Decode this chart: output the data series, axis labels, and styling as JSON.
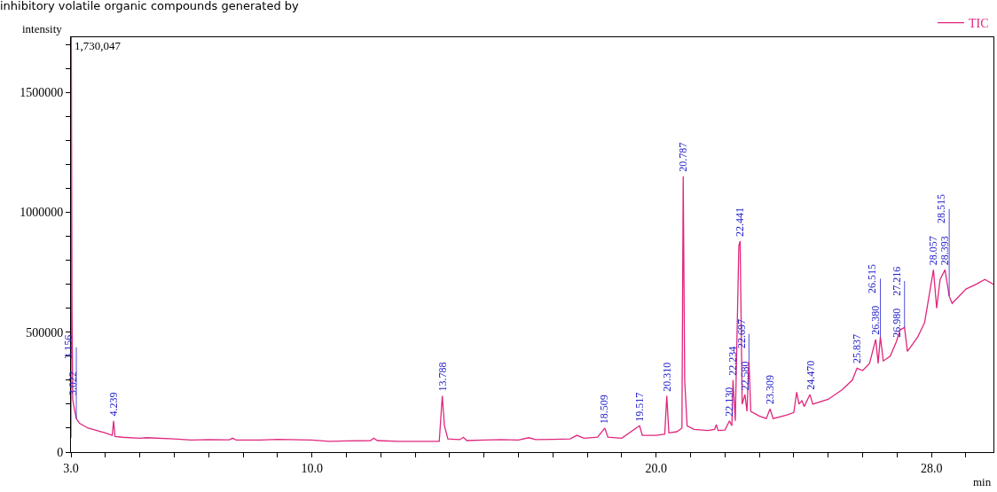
{
  "chart_data": {
    "type": "line",
    "title": "inhibitory volatile organic compounds generated by",
    "xlabel": "min",
    "ylabel": "intensity",
    "xlim": [
      3.0,
      29.8
    ],
    "ylim": [
      0,
      1730047
    ],
    "xticks": [
      {
        "value": 3,
        "label": "3.0"
      },
      {
        "value": 4,
        "label": null
      },
      {
        "value": 5,
        "label": null
      },
      {
        "value": 6,
        "label": null
      },
      {
        "value": 7,
        "label": null
      },
      {
        "value": 8,
        "label": null
      },
      {
        "value": 9,
        "label": null
      },
      {
        "value": 10,
        "label": "10.0"
      },
      {
        "value": 11,
        "label": null
      },
      {
        "value": 12,
        "label": null
      },
      {
        "value": 13,
        "label": null
      },
      {
        "value": 14,
        "label": null
      },
      {
        "value": 15,
        "label": null
      },
      {
        "value": 16,
        "label": null
      },
      {
        "value": 17,
        "label": null
      },
      {
        "value": 18,
        "label": null
      },
      {
        "value": 19,
        "label": null
      },
      {
        "value": 20,
        "label": "20.0"
      },
      {
        "value": 21,
        "label": null
      },
      {
        "value": 22,
        "label": null
      },
      {
        "value": 23,
        "label": null
      },
      {
        "value": 24,
        "label": null
      },
      {
        "value": 25,
        "label": null
      },
      {
        "value": 26,
        "label": null
      },
      {
        "value": 27,
        "label": null
      },
      {
        "value": 28,
        "label": "28.0"
      },
      {
        "value": 29,
        "label": null
      }
    ],
    "yticks": [
      0,
      {
        "value": 100000,
        "label": null
      },
      {
        "value": 200000,
        "label": null
      },
      {
        "value": 300000,
        "label": null
      },
      {
        "value": 400000,
        "label": null
      },
      500000,
      {
        "value": 600000,
        "label": null
      },
      {
        "value": 700000,
        "label": null
      },
      {
        "value": 800000,
        "label": null
      },
      {
        "value": 900000,
        "label": null
      },
      1000000,
      {
        "value": 1100000,
        "label": null
      },
      {
        "value": 1200000,
        "label": null
      },
      {
        "value": 1300000,
        "label": null
      },
      {
        "value": 1400000,
        "label": null
      },
      1500000,
      {
        "value": 1600000,
        "label": null
      },
      {
        "value": 1700000,
        "label": null
      }
    ],
    "legend": "top right",
    "marker": "none",
    "line_style": "solid",
    "series": [
      {
        "name": "TIC",
        "color": "#e0267d",
        "x": [
          3.0,
          3.01,
          3.03,
          3.05,
          3.1,
          3.156,
          3.25,
          3.5,
          4.0,
          4.2,
          4.239,
          4.28,
          4.5,
          5.0,
          5.2,
          6.0,
          6.5,
          7.0,
          7.6,
          7.7,
          7.8,
          8.5,
          9.0,
          10.0,
          10.5,
          11.0,
          11.7,
          11.8,
          11.9,
          12.5,
          13.7,
          13.788,
          13.85,
          13.95,
          14.3,
          14.4,
          14.5,
          15.0,
          15.5,
          16.0,
          16.3,
          16.5,
          17.0,
          17.5,
          17.7,
          17.9,
          18.3,
          18.509,
          18.6,
          19.0,
          19.517,
          19.6,
          20.0,
          20.25,
          20.31,
          20.37,
          20.6,
          20.75,
          20.787,
          20.83,
          20.9,
          21.1,
          21.5,
          21.7,
          21.75,
          21.8,
          22.0,
          22.13,
          22.2,
          22.234,
          22.3,
          22.403,
          22.441,
          22.5,
          22.58,
          22.64,
          22.697,
          22.75,
          23.0,
          23.2,
          23.309,
          23.4,
          23.8,
          24.0,
          24.084,
          24.15,
          24.234,
          24.3,
          24.47,
          24.55,
          25.0,
          25.4,
          25.7,
          25.837,
          26.0,
          26.2,
          26.38,
          26.45,
          26.515,
          26.6,
          26.8,
          26.98,
          27.09,
          27.216,
          27.3,
          27.6,
          27.8,
          28.057,
          28.15,
          28.25,
          28.393,
          28.515,
          28.6,
          29.0,
          29.3,
          29.55,
          29.8
        ],
        "values": [
          60000,
          1730047,
          600000,
          220000,
          180000,
          140000,
          120000,
          100000,
          80000,
          70000,
          130000,
          65000,
          62000,
          58000,
          60000,
          55000,
          50000,
          52000,
          51000,
          58000,
          50000,
          50000,
          53000,
          50000,
          45000,
          47000,
          48000,
          58000,
          48000,
          45000,
          45000,
          235000,
          110000,
          55000,
          52000,
          62000,
          48000,
          50000,
          52000,
          50000,
          60000,
          52000,
          53000,
          55000,
          70000,
          58000,
          62000,
          100000,
          62000,
          58000,
          110000,
          70000,
          70000,
          75000,
          235000,
          80000,
          85000,
          100000,
          1150000,
          300000,
          110000,
          95000,
          90000,
          95000,
          115000,
          90000,
          92000,
          130000,
          110000,
          300000,
          130000,
          860000,
          880000,
          200000,
          240000,
          170000,
          380000,
          170000,
          150000,
          140000,
          180000,
          140000,
          155000,
          165000,
          250000,
          200000,
          215000,
          190000,
          240000,
          200000,
          220000,
          260000,
          300000,
          350000,
          340000,
          370000,
          470000,
          370000,
          480000,
          380000,
          400000,
          460000,
          510000,
          520000,
          420000,
          480000,
          540000,
          760000,
          600000,
          720000,
          760000,
          650000,
          620000,
          680000,
          700000,
          720000,
          700000
        ]
      }
    ],
    "annotations": [
      {
        "text": "1,730,047",
        "x": 3.0,
        "y": 1730047
      },
      {
        "text": "3.022",
        "x": 3.05,
        "y": 220000
      },
      {
        "text": "3.156",
        "x": 3.156,
        "y": 140000
      },
      {
        "text": "4.239",
        "x": 4.239,
        "y": 130000
      },
      {
        "text": "13.788",
        "x": 13.788,
        "y": 235000
      },
      {
        "text": "18.509",
        "x": 18.509,
        "y": 100000
      },
      {
        "text": "19.517",
        "x": 19.517,
        "y": 110000
      },
      {
        "text": "20.310",
        "x": 20.31,
        "y": 235000
      },
      {
        "text": "20.787",
        "x": 20.787,
        "y": 1150000
      },
      {
        "text": "22.130",
        "x": 22.13,
        "y": 130000
      },
      {
        "text": "22.234",
        "x": 22.234,
        "y": 300000
      },
      {
        "text": "22.441",
        "x": 22.441,
        "y": 880000
      },
      {
        "text": "22.580",
        "x": 22.58,
        "y": 240000
      },
      {
        "text": "22.697",
        "x": 22.697,
        "y": 380000
      },
      {
        "text": "23.309",
        "x": 23.309,
        "y": 180000
      },
      {
        "text": "24.470",
        "x": 24.47,
        "y": 240000
      },
      {
        "text": "25.837",
        "x": 25.837,
        "y": 350000
      },
      {
        "text": "26.380",
        "x": 26.38,
        "y": 470000
      },
      {
        "text": "26.515",
        "x": 26.515,
        "y": 480000
      },
      {
        "text": "26.980",
        "x": 26.98,
        "y": 460000
      },
      {
        "text": "27.216",
        "x": 27.216,
        "y": 520000
      },
      {
        "text": "28.057",
        "x": 28.057,
        "y": 760000
      },
      {
        "text": "28.393",
        "x": 28.393,
        "y": 760000
      },
      {
        "text": "28.515",
        "x": 28.515,
        "y": 650000
      }
    ]
  }
}
